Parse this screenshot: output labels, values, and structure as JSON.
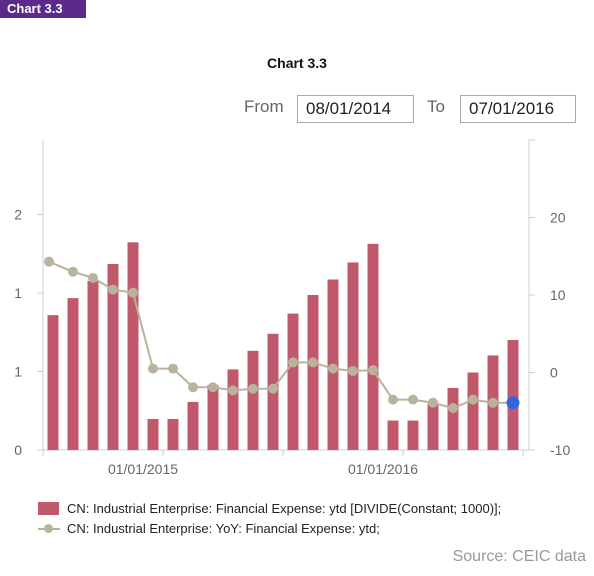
{
  "tag": "Chart 3.3",
  "range": {
    "from_label": "From",
    "from_value": "08/01/2014",
    "to_label": "To",
    "to_value": "07/01/2016"
  },
  "source": "Source: CEIC data",
  "colors": {
    "bar": "#c0596b",
    "line": "#b9b29c",
    "highlight": "#3366dd",
    "tag_bg": "#5b2a8a"
  },
  "chart_data": {
    "type": "bar",
    "title": "Chart 3.3",
    "x_tick_labels": [
      "01/01/2015",
      "01/01/2016"
    ],
    "left_axis": {
      "tick_labels": [
        "0",
        "1",
        "1",
        "2"
      ],
      "ylim": [
        0,
        2
      ]
    },
    "right_axis": {
      "tick_labels": [
        "-10",
        "0",
        "10",
        "20"
      ],
      "ylim": [
        -10,
        30
      ]
    },
    "categories": [
      "08/2014",
      "09/2014",
      "10/2014",
      "11/2014",
      "12/2014",
      "01/2015",
      "02/2015",
      "03/2015",
      "04/2015",
      "05/2015",
      "06/2015",
      "07/2015",
      "08/2015",
      "09/2015",
      "10/2015",
      "11/2015",
      "12/2015",
      "01/2016",
      "02/2016",
      "03/2016",
      "04/2016",
      "05/2016",
      "06/2016",
      "07/2016"
    ],
    "series": [
      {
        "name": "CN: Industrial Enterprise: Financial Expense: ytd [DIVIDE(Constant; 1000)];",
        "type": "bar",
        "axis": "left",
        "values": [
          0.87,
          0.98,
          1.09,
          1.2,
          1.34,
          0.2,
          0.2,
          0.31,
          0.42,
          0.52,
          0.64,
          0.75,
          0.88,
          1.0,
          1.1,
          1.21,
          1.33,
          0.19,
          0.19,
          0.3,
          0.4,
          0.5,
          0.61,
          0.71
        ]
      },
      {
        "name": "CN: Industrial Enterprise: YoY: Financial Expense: ytd;",
        "type": "line",
        "axis": "right",
        "values": [
          14.3,
          13.0,
          12.2,
          10.7,
          10.3,
          0.5,
          0.5,
          -1.9,
          -1.9,
          -2.3,
          -2.1,
          -2.1,
          1.3,
          1.3,
          0.5,
          0.2,
          0.3,
          -3.5,
          -3.5,
          -3.9,
          -4.6,
          -3.5,
          -3.9,
          -3.9
        ]
      }
    ]
  }
}
